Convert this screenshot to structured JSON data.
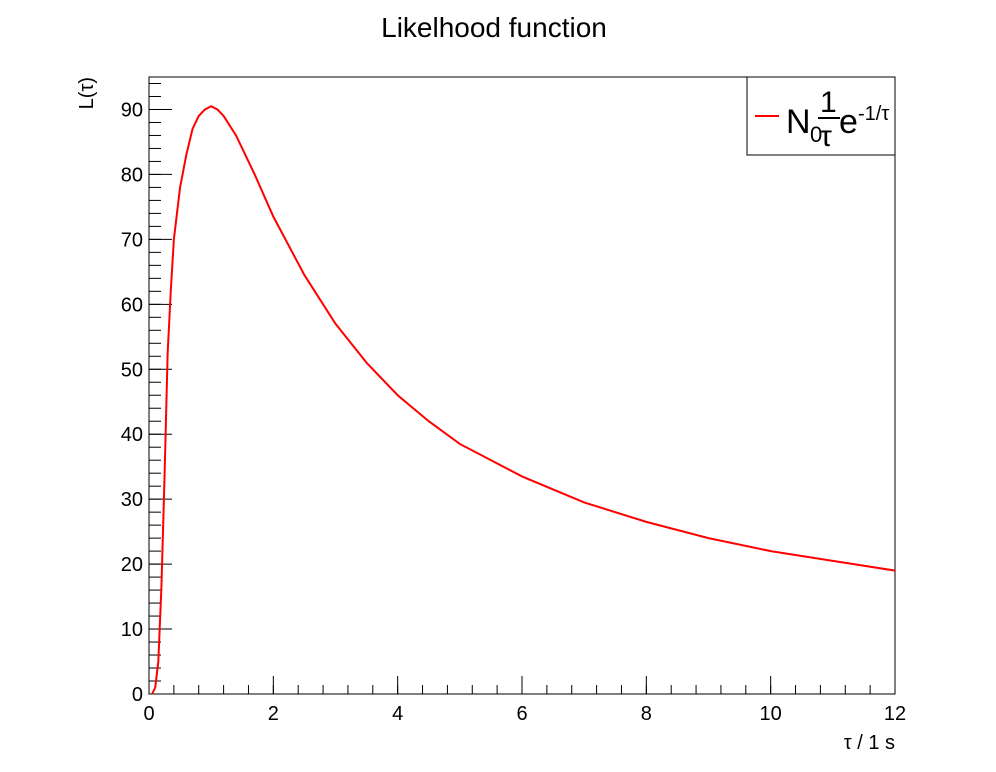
{
  "chart_data": {
    "type": "line",
    "title": "Likelhood function",
    "xlabel": "τ / 1 s",
    "ylabel": "L(τ)",
    "xlim": [
      0,
      12
    ],
    "ylim": [
      0,
      95
    ],
    "x_ticks": [
      0,
      2,
      4,
      6,
      8,
      10,
      12
    ],
    "y_ticks": [
      0,
      10,
      20,
      30,
      40,
      50,
      60,
      70,
      80,
      90
    ],
    "grid": false,
    "legend_position": "top-right",
    "series": [
      {
        "name": "N_0 (1/τ) e^(-1/τ)",
        "color": "#ff0000",
        "x": [
          0.05,
          0.1,
          0.15,
          0.2,
          0.25,
          0.3,
          0.35,
          0.4,
          0.45,
          0.5,
          0.6,
          0.7,
          0.8,
          0.9,
          1.0,
          1.1,
          1.2,
          1.3,
          1.4,
          1.5,
          1.7,
          2.0,
          2.5,
          3.0,
          3.5,
          4.0,
          4.5,
          5.0,
          6.0,
          7.0,
          8.0,
          9.0,
          10.0,
          11.0,
          12.0
        ],
        "y": [
          0.0,
          1.0,
          5.0,
          16.5,
          33.5,
          52.5,
          62.0,
          70.0,
          74.0,
          78.0,
          83.0,
          87.0,
          89.0,
          90.0,
          90.5,
          90.0,
          89.0,
          87.5,
          86.0,
          84.0,
          80.0,
          73.5,
          64.5,
          57.0,
          51.0,
          46.0,
          42.0,
          38.5,
          33.5,
          29.5,
          26.5,
          24.0,
          22.0,
          20.5,
          19.0
        ]
      }
    ]
  }
}
